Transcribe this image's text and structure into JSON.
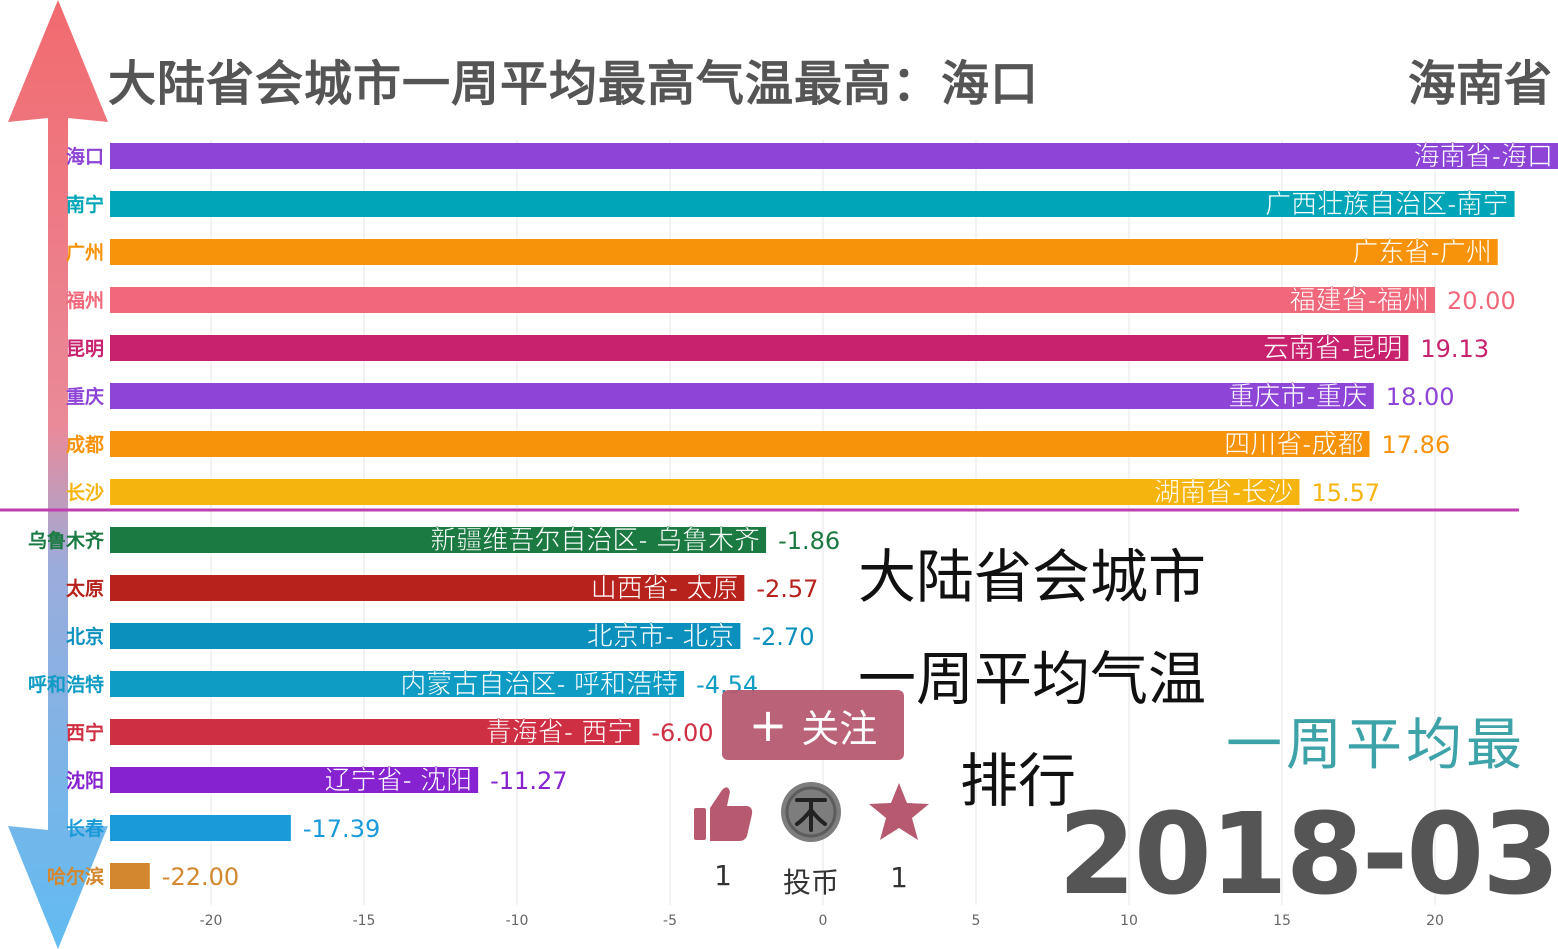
{
  "title": "大陆省会城市一周平均最高气温最高：海口",
  "title_right": "海南省",
  "caption_lines": [
    "大陆省会城市",
    "一周平均气温",
    "排行"
  ],
  "watermark": "一周平均最",
  "date": "2018-03",
  "follow_label": "关注",
  "actions": {
    "like_count": "1",
    "coin_label": "投币",
    "fav_count": "1"
  },
  "chart_data": {
    "type": "bar",
    "orientation": "horizontal",
    "xlim": [
      -23,
      22
    ],
    "xticks": [
      -20,
      -15,
      -10,
      -5,
      0,
      5,
      10,
      15,
      20
    ],
    "grid": true,
    "categories": [
      "海口",
      "南宁",
      "广州",
      "福州",
      "昆明",
      "重庆",
      "成都",
      "长沙",
      "乌鲁木齐",
      "太原",
      "北京",
      "呼和浩特",
      "西宁",
      "沈阳",
      "长春",
      "哈尔滨"
    ],
    "bar_labels": [
      "海南省-海口",
      "广西壮族自治区-南宁",
      "广东省-广州",
      "福建省-福州",
      "云南省-昆明",
      "重庆市-重庆",
      "四川省-成都",
      "湖南省-长沙",
      "新疆维吾尔自治区- 乌鲁木齐",
      "山西省- 太原",
      "北京市- 北京",
      "内蒙古自治区- 呼和浩特",
      "青海省- 西宁",
      "辽宁省- 沈阳",
      "",
      ""
    ],
    "values": [
      24.2,
      22.6,
      22.05,
      20.0,
      19.13,
      18.0,
      17.86,
      15.57,
      -1.86,
      -2.57,
      -2.7,
      -4.54,
      -6.0,
      -11.27,
      -17.39,
      -22.0
    ],
    "value_labels": [
      "",
      "",
      "",
      "20.00",
      "19.13",
      "18.00",
      "17.86",
      "15.57",
      "-1.86",
      "-2.57",
      "-2.70",
      "-4.54",
      "-6.00",
      "-11.27",
      "-17.39",
      "-22.00"
    ],
    "colors": [
      "#8e44d6",
      "#00a5b8",
      "#f7930a",
      "#f0687a",
      "#c8216e",
      "#8e44d6",
      "#f7930a",
      "#f6b40f",
      "#1a7a42",
      "#b8221c",
      "#0b8fbd",
      "#0e9cc4",
      "#cf2f43",
      "#8622cf",
      "#1a9ad8",
      "#d3872e"
    ],
    "divider_color": "#c03fb0",
    "arrow_colors": {
      "top": "#f05a5f",
      "bottom": "#4fb4f0"
    }
  }
}
